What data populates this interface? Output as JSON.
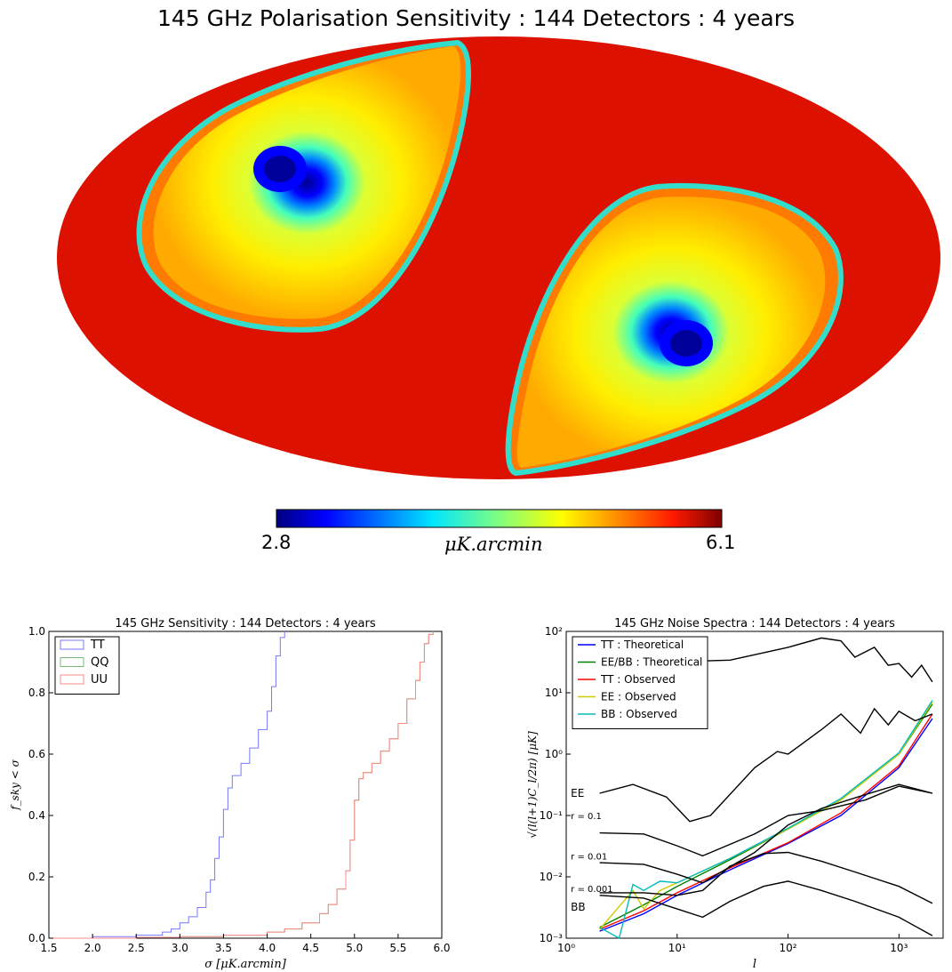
{
  "map": {
    "title": "145 GHz Polarisation Sensitivity : 144 Detectors : 4 years",
    "colorbar_min": "2.8",
    "colorbar_max": "6.1",
    "colorbar_unit": "μK.arcmin",
    "colormap": [
      "#00007f",
      "#0000ff",
      "#007fff",
      "#00ffff",
      "#7fff7f",
      "#ffff00",
      "#ff7f00",
      "#ff0000",
      "#7f0000"
    ]
  },
  "chart_data": [
    {
      "type": "line",
      "title": "145 GHz Sensitivity : 144 Detectors : 4 years",
      "xlabel": "σ [μK.arcmin]",
      "ylabel": "f_sky < σ",
      "xlim": [
        1.5,
        6.0
      ],
      "ylim": [
        0.0,
        1.0
      ],
      "xticks": [
        "1.5",
        "2.0",
        "2.5",
        "3.0",
        "3.5",
        "4.0",
        "4.5",
        "5.0",
        "5.5",
        "6.0"
      ],
      "yticks": [
        "0.0",
        "0.2",
        "0.4",
        "0.6",
        "0.8",
        "1.0"
      ],
      "legend_position": "top-left",
      "series": [
        {
          "name": "TT",
          "color": "#7777ff",
          "x": [
            1.5,
            2.0,
            2.5,
            2.8,
            2.9,
            3.0,
            3.1,
            3.2,
            3.3,
            3.35,
            3.4,
            3.45,
            3.5,
            3.55,
            3.6,
            3.7,
            3.8,
            3.9,
            4.0,
            4.05,
            4.1,
            4.15,
            4.2
          ],
          "y": [
            0.0,
            0.005,
            0.01,
            0.02,
            0.03,
            0.05,
            0.07,
            0.1,
            0.15,
            0.19,
            0.26,
            0.33,
            0.42,
            0.49,
            0.53,
            0.57,
            0.62,
            0.68,
            0.74,
            0.82,
            0.92,
            0.98,
            1.0
          ]
        },
        {
          "name": "QQ",
          "color": "#77bb77",
          "x": [
            1.5,
            2.5,
            3.0,
            3.5,
            4.0,
            4.2,
            4.4,
            4.6,
            4.7,
            4.8,
            4.9,
            4.95,
            5.0,
            5.05,
            5.1,
            5.2,
            5.3,
            5.4,
            5.5,
            5.6,
            5.7,
            5.75,
            5.8,
            5.85,
            5.9
          ],
          "y": [
            0.0,
            0.003,
            0.005,
            0.01,
            0.02,
            0.03,
            0.05,
            0.08,
            0.11,
            0.16,
            0.22,
            0.32,
            0.45,
            0.52,
            0.54,
            0.57,
            0.61,
            0.65,
            0.7,
            0.78,
            0.84,
            0.9,
            0.96,
            0.99,
            1.0
          ]
        },
        {
          "name": "UU",
          "color": "#ff8888",
          "x": [
            1.5,
            2.5,
            3.0,
            3.5,
            4.0,
            4.2,
            4.4,
            4.6,
            4.7,
            4.8,
            4.9,
            4.95,
            5.0,
            5.05,
            5.1,
            5.2,
            5.3,
            5.4,
            5.5,
            5.6,
            5.7,
            5.75,
            5.8,
            5.85,
            5.9
          ],
          "y": [
            0.0,
            0.003,
            0.005,
            0.01,
            0.02,
            0.03,
            0.05,
            0.08,
            0.11,
            0.16,
            0.22,
            0.32,
            0.45,
            0.52,
            0.54,
            0.57,
            0.61,
            0.65,
            0.7,
            0.78,
            0.84,
            0.9,
            0.96,
            0.99,
            1.0
          ]
        }
      ]
    },
    {
      "type": "line",
      "title": "145 GHz Noise Spectra : 144 Detectors : 4 years",
      "xlabel": "l",
      "ylabel": "√(l(l+1)C_l/2π) [μK]",
      "xscale": "log",
      "yscale": "log",
      "xlim": [
        1,
        2500
      ],
      "ylim": [
        0.001,
        100
      ],
      "xticks": [
        "10⁰",
        "10¹",
        "10²",
        "10³"
      ],
      "yticks": [
        "10⁻³",
        "10⁻²",
        "10⁻¹",
        "10⁰",
        "10¹",
        "10²"
      ],
      "legend_position": "top-left",
      "annotations": [
        "EE",
        "r = 0.1",
        "r = 0.01",
        "r = 0.001",
        "BB"
      ],
      "series": [
        {
          "name": "TT : Theoretical",
          "color": "#0000ff",
          "x": [
            2,
            5,
            10,
            30,
            100,
            300,
            1000,
            2000
          ],
          "y": [
            0.0013,
            0.0025,
            0.005,
            0.013,
            0.035,
            0.1,
            0.6,
            3.8
          ]
        },
        {
          "name": "EE/BB : Theoretical",
          "color": "#008000",
          "x": [
            2,
            5,
            10,
            30,
            100,
            300,
            1000,
            2000
          ],
          "y": [
            0.0015,
            0.0035,
            0.007,
            0.019,
            0.06,
            0.18,
            1.0,
            6.5
          ]
        },
        {
          "name": "TT : Observed",
          "color": "#ff0000",
          "x": [
            2,
            5,
            10,
            30,
            100,
            300,
            1000,
            2000
          ],
          "y": [
            0.0014,
            0.0028,
            0.0055,
            0.014,
            0.036,
            0.11,
            0.65,
            4.5
          ]
        },
        {
          "name": "EE : Observed",
          "color": "#cccc00",
          "x": [
            2,
            4,
            5,
            7,
            10,
            30,
            100,
            300,
            1000,
            2000
          ],
          "y": [
            0.0014,
            0.006,
            0.003,
            0.006,
            0.008,
            0.02,
            0.06,
            0.18,
            1.0,
            7.0
          ]
        },
        {
          "name": "BB : Observed",
          "color": "#00bbbb",
          "x": [
            2,
            3,
            4,
            5,
            7,
            10,
            30,
            100,
            300,
            1000,
            2000
          ],
          "y": [
            0.0015,
            0.001,
            0.0075,
            0.006,
            0.0085,
            0.008,
            0.02,
            0.062,
            0.19,
            1.05,
            7.5
          ]
        },
        {
          "color": "#000000",
          "x": [
            2,
            4,
            10,
            30,
            100,
            200,
            300,
            400,
            600,
            800,
            1000,
            1300,
            1600,
            2000
          ],
          "y": [
            28,
            40,
            32,
            34,
            55,
            78,
            70,
            38,
            55,
            28,
            30,
            18,
            28,
            15
          ]
        },
        {
          "color": "#000000",
          "x": [
            2,
            4,
            8,
            13,
            20,
            50,
            80,
            100,
            200,
            300,
            450,
            600,
            800,
            1000,
            1400,
            2000
          ],
          "y": [
            0.23,
            0.32,
            0.2,
            0.08,
            0.1,
            0.6,
            1.1,
            1.0,
            2.5,
            4.5,
            2.2,
            5.5,
            3,
            5,
            3.5,
            4.5
          ]
        },
        {
          "color": "#000000",
          "x": [
            2,
            5,
            10,
            17,
            50,
            100,
            200,
            500,
            1000,
            2000
          ],
          "y": [
            0.052,
            0.05,
            0.032,
            0.022,
            0.05,
            0.1,
            0.12,
            0.18,
            0.3,
            0.23
          ]
        },
        {
          "color": "#000000",
          "x": [
            2,
            5,
            10,
            17,
            50,
            100,
            200,
            500,
            1000,
            2000
          ],
          "y": [
            0.017,
            0.016,
            0.011,
            0.008,
            0.025,
            0.07,
            0.13,
            0.22,
            0.32,
            0.23
          ]
        },
        {
          "color": "#000000",
          "x": [
            2,
            5,
            10,
            17,
            30,
            60,
            100,
            200,
            400,
            1000,
            2000
          ],
          "y": [
            0.0055,
            0.0055,
            0.005,
            0.006,
            0.015,
            0.024,
            0.025,
            0.018,
            0.012,
            0.007,
            0.0037
          ]
        },
        {
          "color": "#000000",
          "x": [
            2,
            5,
            10,
            17,
            30,
            60,
            100,
            200,
            400,
            1000,
            2000
          ],
          "y": [
            0.005,
            0.0045,
            0.003,
            0.0022,
            0.004,
            0.007,
            0.0085,
            0.006,
            0.004,
            0.0022,
            0.0011
          ]
        }
      ]
    }
  ]
}
